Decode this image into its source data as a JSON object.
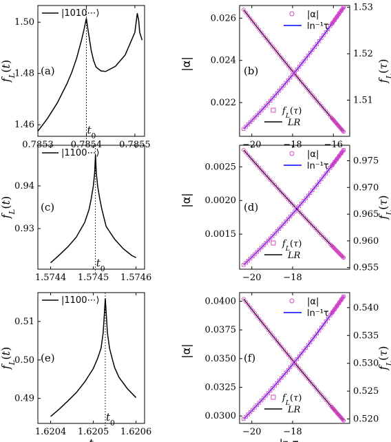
{
  "chart_data": [
    {
      "id": "a",
      "type": "line",
      "panel_label": "(a)",
      "ylabel": "f_L(t)",
      "xlabel": "",
      "xlim": [
        0.7853,
        0.78552
      ],
      "ylim": [
        1.4555,
        1.5065
      ],
      "xticks": [
        {
          "v": 0.7853,
          "label": "0.7853"
        },
        {
          "v": 0.7854,
          "label": "0.7854"
        },
        {
          "v": 0.7855,
          "label": "0.7855"
        }
      ],
      "yticks": [
        {
          "v": 1.46,
          "label": "1.46"
        },
        {
          "v": 1.48,
          "label": "1.48"
        },
        {
          "v": 1.5,
          "label": "1.50"
        }
      ],
      "vline": {
        "x": 0.7854,
        "label": "t_0"
      },
      "legend": "|1010⋯⟩",
      "series": [
        {
          "name": "|1010⋯⟩",
          "x": [
            0.7853,
            0.78532,
            0.78534,
            0.78536,
            0.78537,
            0.78538,
            0.78539,
            0.785395,
            0.7854,
            0.785403,
            0.78541,
            0.785415,
            0.78542,
            0.78543,
            0.78544,
            0.78546,
            0.78548,
            0.7855,
            0.785505,
            0.785508,
            0.78551,
            0.785515
          ],
          "y": [
            1.4575,
            1.4625,
            1.4685,
            1.476,
            1.4805,
            1.486,
            1.493,
            1.497,
            1.5015,
            1.4975,
            1.489,
            1.485,
            1.4825,
            1.481,
            1.4808,
            1.4828,
            1.4872,
            1.496,
            1.5035,
            1.5005,
            1.496,
            1.493
          ]
        }
      ]
    },
    {
      "id": "b",
      "type": "scatter",
      "panel_label": "(b)",
      "ylabel": "|α|",
      "ylabel_right": "f_L(τ)",
      "xlabel": "",
      "xlim": [
        -20.6,
        -15.2
      ],
      "ylim": [
        0.0204,
        0.0266
      ],
      "ylim_right": [
        1.5022,
        1.5304
      ],
      "xticks": [
        {
          "v": -20,
          "label": "−20"
        },
        {
          "v": -18,
          "label": "−18"
        },
        {
          "v": -16,
          "label": "−16"
        }
      ],
      "yticks": [
        {
          "v": 0.022,
          "label": "0.022"
        },
        {
          "v": 0.024,
          "label": "0.024"
        },
        {
          "v": 0.026,
          "label": "0.026"
        }
      ],
      "yticks_right": [
        {
          "v": 1.51,
          "label": "1.51"
        },
        {
          "v": 1.52,
          "label": "1.52"
        },
        {
          "v": 1.53,
          "label": "1.53"
        }
      ],
      "alpha": {
        "x": [
          -20.4,
          -15.5
        ],
        "y": [
          0.0264,
          0.02062
        ]
      },
      "fL": {
        "x": [
          -20.4,
          -15.5
        ],
        "y": [
          1.5038,
          1.53
        ]
      },
      "legend_top": [
        "|α|",
        "ln⁻¹τ"
      ],
      "legend_bottom": [
        "f_L(τ)",
        "LR"
      ]
    },
    {
      "id": "c",
      "type": "line",
      "panel_label": "(c)",
      "ylabel": "f_L(t)",
      "xlabel": "",
      "xlim": [
        1.57437,
        1.57462
      ],
      "ylim": [
        0.9205,
        0.9495
      ],
      "xticks": [
        {
          "v": 1.5744,
          "label": "1.5744"
        },
        {
          "v": 1.5745,
          "label": "1.5745"
        },
        {
          "v": 1.5746,
          "label": "1.5746"
        }
      ],
      "yticks": [
        {
          "v": 0.93,
          "label": "0.93"
        },
        {
          "v": 0.94,
          "label": "0.94"
        }
      ],
      "vline": {
        "x": 1.574505,
        "label": "t_0"
      },
      "legend": "|1100⋯⟩",
      "series": [
        {
          "name": "|1100⋯⟩",
          "x": [
            1.5744,
            1.57442,
            1.57444,
            1.57446,
            1.57448,
            1.57449,
            1.574495,
            1.5745,
            1.574503,
            1.574505,
            1.574507,
            1.57451,
            1.574515,
            1.57452,
            1.57453,
            1.57455,
            1.57457,
            1.57459,
            1.5746
          ],
          "y": [
            0.922,
            0.9238,
            0.9257,
            0.928,
            0.9315,
            0.9345,
            0.937,
            0.94,
            0.943,
            0.9473,
            0.943,
            0.94,
            0.937,
            0.9345,
            0.9305,
            0.9275,
            0.9253,
            0.9237,
            0.9232
          ]
        }
      ]
    },
    {
      "id": "d",
      "type": "scatter",
      "panel_label": "(d)",
      "ylabel": "|α|",
      "ylabel_right": "f_L(τ)",
      "xlabel": "",
      "xlim": [
        -20.6,
        -15.2
      ],
      "ylim": [
        0.00098,
        0.00282
      ],
      "ylim_right": [
        0.9547,
        0.9779
      ],
      "xticks": [
        {
          "v": -20,
          "label": "−20"
        },
        {
          "v": -18,
          "label": "−18"
        }
      ],
      "yticks": [
        {
          "v": 0.0015,
          "label": "0.0015"
        },
        {
          "v": 0.002,
          "label": "0.0020"
        },
        {
          "v": 0.0025,
          "label": "0.0025"
        }
      ],
      "yticks_right": [
        {
          "v": 0.955,
          "label": "0.955"
        },
        {
          "v": 0.96,
          "label": "0.960"
        },
        {
          "v": 0.965,
          "label": "0.965"
        },
        {
          "v": 0.97,
          "label": "0.970"
        },
        {
          "v": 0.975,
          "label": "0.975"
        }
      ],
      "alpha": {
        "x": [
          -20.4,
          -15.5
        ],
        "y": [
          0.00275,
          0.00115
        ]
      },
      "fL": {
        "x": [
          -20.4,
          -15.5
        ],
        "y": [
          0.9555,
          0.977
        ]
      },
      "legend_top": [
        "|α|",
        "ln⁻¹τ"
      ],
      "legend_bottom": [
        "f_L(τ)",
        "LR"
      ]
    },
    {
      "id": "e",
      "type": "line",
      "panel_label": "(e)",
      "ylabel": "f_L(t)",
      "xlabel": "t",
      "xlim": [
        1.62037,
        1.62062
      ],
      "ylim": [
        0.4835,
        0.5175
      ],
      "xticks": [
        {
          "v": 1.6204,
          "label": "1.6204"
        },
        {
          "v": 1.6205,
          "label": "1.6205"
        },
        {
          "v": 1.6206,
          "label": "1.6206"
        }
      ],
      "yticks": [
        {
          "v": 0.49,
          "label": "0.49"
        },
        {
          "v": 0.5,
          "label": "0.50"
        },
        {
          "v": 0.51,
          "label": "0.51"
        }
      ],
      "vline": {
        "x": 1.620528,
        "label": "t_0"
      },
      "legend": "|1100⋯⟩",
      "series": [
        {
          "name": "|1100⋯⟩",
          "x": [
            1.6204,
            1.62042,
            1.62044,
            1.62046,
            1.62048,
            1.6205,
            1.62051,
            1.620518,
            1.620523,
            1.620528,
            1.620533,
            1.620538,
            1.620545,
            1.62055,
            1.62056,
            1.62058,
            1.6206
          ],
          "y": [
            0.4853,
            0.4872,
            0.4893,
            0.4915,
            0.4943,
            0.4978,
            0.5004,
            0.503,
            0.507,
            0.516,
            0.507,
            0.503,
            0.5,
            0.498,
            0.4955,
            0.4925,
            0.4902
          ]
        }
      ]
    },
    {
      "id": "f",
      "type": "scatter",
      "panel_label": "(f)",
      "ylabel": "|α|",
      "ylabel_right": "f_L(τ)",
      "xlabel": "ln τ",
      "xlim": [
        -20.6,
        -15.2
      ],
      "ylim": [
        0.02935,
        0.04075
      ],
      "ylim_right": [
        0.5192,
        0.5427
      ],
      "xticks": [
        {
          "v": -20,
          "label": "−20"
        },
        {
          "v": -18,
          "label": "−18"
        }
      ],
      "yticks": [
        {
          "v": 0.03,
          "label": "0.0300"
        },
        {
          "v": 0.0325,
          "label": "0.0325"
        },
        {
          "v": 0.035,
          "label": "0.0350"
        },
        {
          "v": 0.0375,
          "label": "0.0375"
        },
        {
          "v": 0.04,
          "label": "0.0400"
        }
      ],
      "yticks_right": [
        {
          "v": 0.52,
          "label": "0.520"
        },
        {
          "v": 0.525,
          "label": "0.525"
        },
        {
          "v": 0.53,
          "label": "0.530"
        },
        {
          "v": 0.535,
          "label": "0.535"
        },
        {
          "v": 0.54,
          "label": "0.540"
        }
      ],
      "alpha": {
        "x": [
          -20.4,
          -15.5
        ],
        "y": [
          0.0402,
          0.0296
        ]
      },
      "fL": {
        "x": [
          -20.4,
          -15.5
        ],
        "y": [
          0.52,
          0.542
        ]
      },
      "legend_top": [
        "|α|",
        "ln⁻¹τ"
      ],
      "legend_bottom": [
        "f_L(τ)",
        "LR"
      ]
    }
  ],
  "colors": {
    "axis": "#000000",
    "line": "#000000",
    "marker": "#d946c8",
    "fit_blue": "#0000ff",
    "fit_black": "#000000"
  }
}
